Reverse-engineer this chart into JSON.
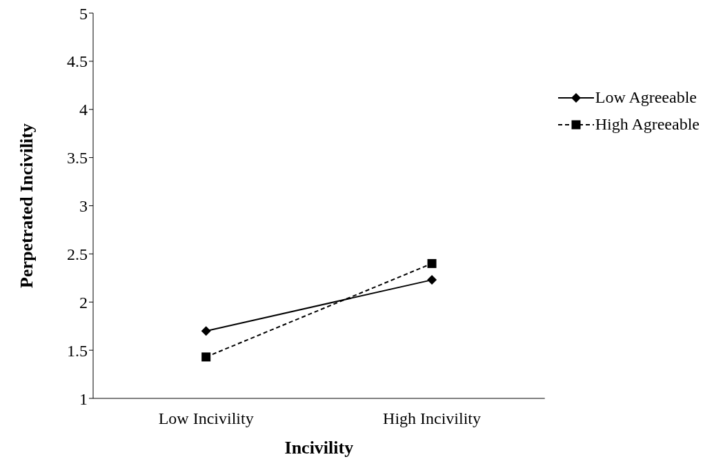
{
  "chart_data": {
    "type": "line",
    "xlabel": "Incivility",
    "ylabel": "Perpetrated Incivility",
    "categories": [
      "Low Incivility",
      "High Incivility"
    ],
    "series": [
      {
        "name": "Low Agreeable",
        "color": "#000000",
        "values": [
          1.7,
          2.23
        ],
        "marker": "diamond",
        "line_style": "solid"
      },
      {
        "name": "High Agreeable",
        "color": "#000000",
        "values": [
          1.43,
          2.4
        ],
        "marker": "square",
        "line_style": "dashed"
      }
    ],
    "ylim": [
      1,
      5
    ],
    "yticks": [
      1,
      1.5,
      2,
      2.5,
      3,
      3.5,
      4,
      4.5,
      5
    ],
    "grid": false,
    "legend": "top right"
  }
}
